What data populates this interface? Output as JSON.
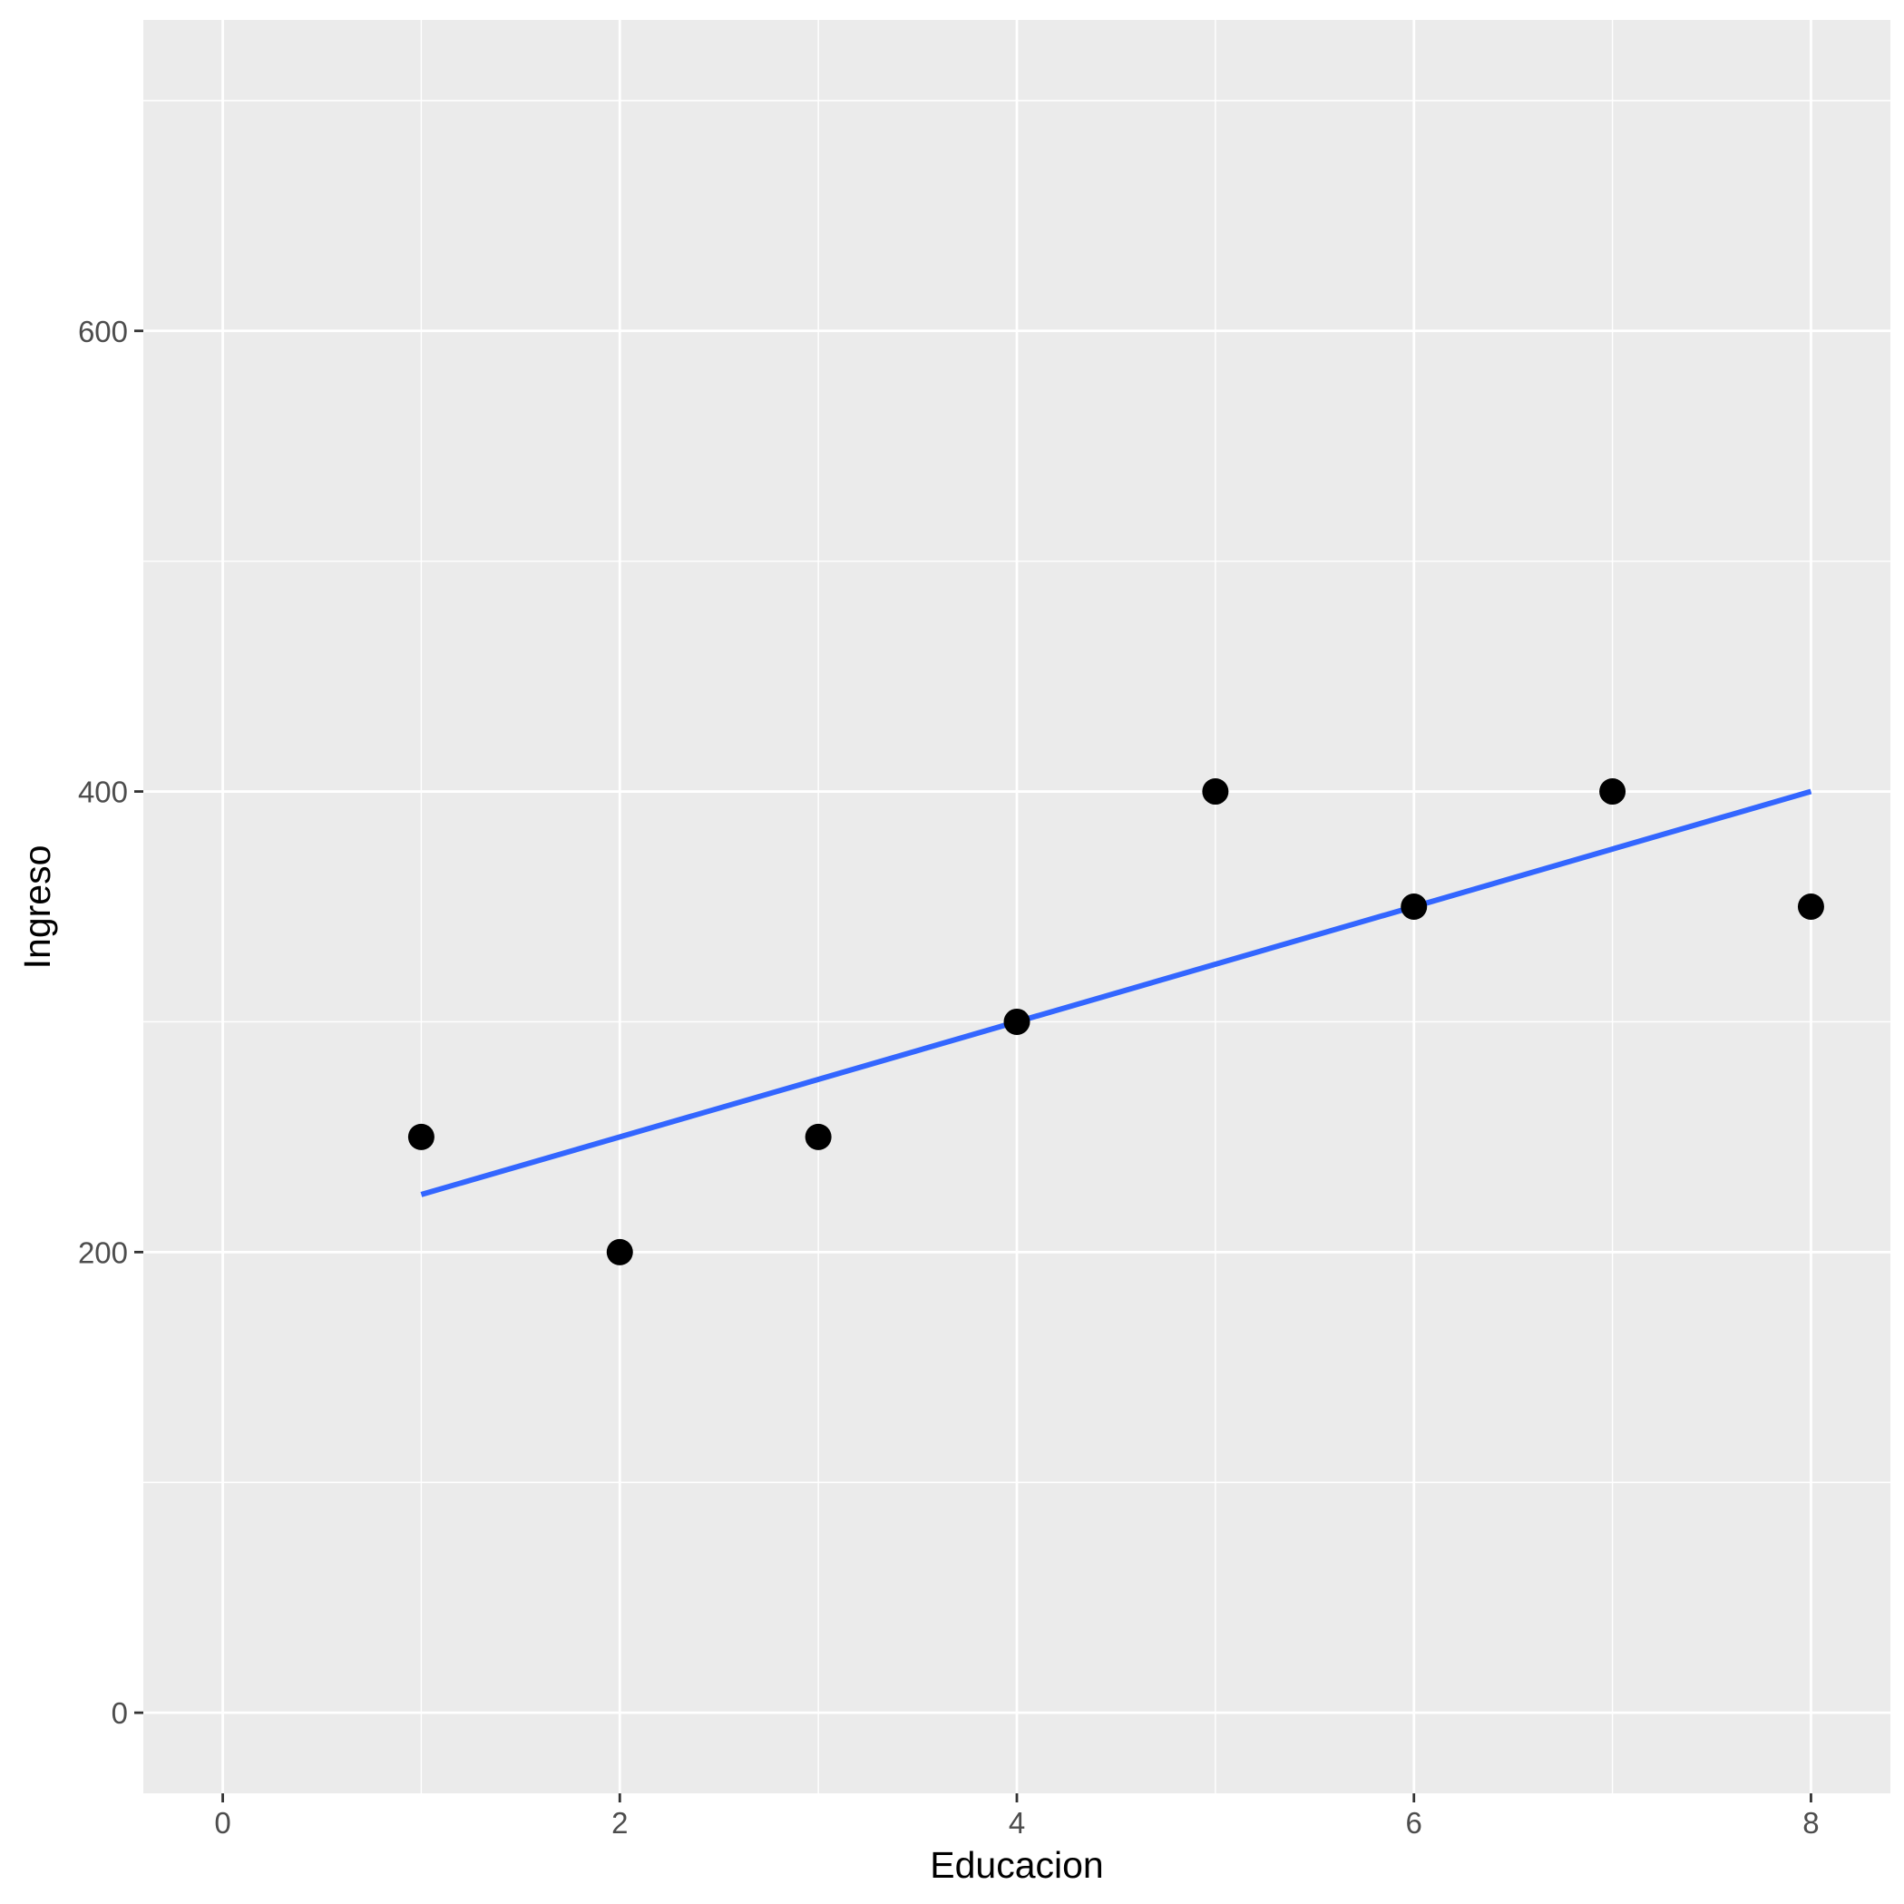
{
  "chart_data": {
    "type": "scatter",
    "title": "",
    "xlabel": "Educacion",
    "ylabel": "Ingreso",
    "xlim": [
      -0.4,
      8.4
    ],
    "ylim": [
      -35,
      735
    ],
    "x_ticks": [
      0,
      2,
      4,
      6,
      8
    ],
    "y_ticks": [
      0,
      200,
      400,
      600
    ],
    "x_minor": [
      1,
      3,
      5,
      7
    ],
    "y_minor": [
      100,
      300,
      500,
      700
    ],
    "grid": true,
    "panel_background": "#ebebeb",
    "grid_color": "#ffffff",
    "point_color": "#000000",
    "series": [
      {
        "points": [
          {
            "x": 1,
            "y": 250
          },
          {
            "x": 2,
            "y": 200
          },
          {
            "x": 3,
            "y": 250
          },
          {
            "x": 4,
            "y": 300
          },
          {
            "x": 5,
            "y": 400
          },
          {
            "x": 6,
            "y": 350
          },
          {
            "x": 7,
            "y": 400
          },
          {
            "x": 8,
            "y": 350
          }
        ]
      }
    ],
    "fit_line": {
      "type": "linear",
      "color": "#3366ff",
      "x": [
        1,
        8
      ],
      "y": [
        225,
        400
      ]
    }
  }
}
